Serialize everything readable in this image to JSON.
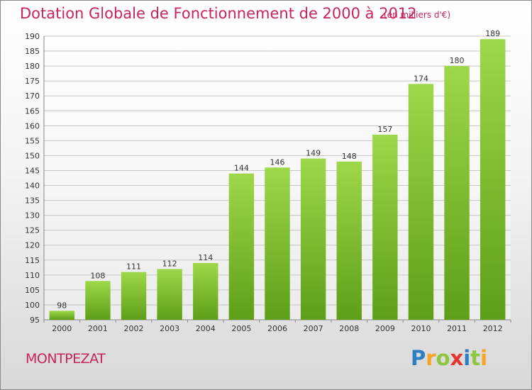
{
  "chart_data": {
    "type": "bar",
    "title": "Dotation Globale de Fonctionnement de 2000 à 2012",
    "unit": "(en milliers d'€)",
    "categories": [
      "2000",
      "2001",
      "2002",
      "2003",
      "2004",
      "2005",
      "2006",
      "2007",
      "2008",
      "2009",
      "2010",
      "2011",
      "2012"
    ],
    "values": [
      98,
      108,
      111,
      112,
      114,
      144,
      146,
      149,
      148,
      157,
      174,
      180,
      189
    ],
    "ylim": [
      95,
      190
    ],
    "ytick_step": 5,
    "xlabel": "",
    "ylabel": "",
    "grid": true,
    "bar_color": "#7cbd2c"
  },
  "commune": "MONTPEZAT",
  "brand": {
    "letters": [
      "P",
      "r",
      "o",
      "x",
      "i",
      "t",
      "i"
    ],
    "colors": [
      "#2d7fc4",
      "#f5a623",
      "#8dc63f",
      "#e3342f",
      "#2d7fc4",
      "#8dc63f",
      "#f5a623"
    ]
  },
  "accent_color": "#c8245a"
}
